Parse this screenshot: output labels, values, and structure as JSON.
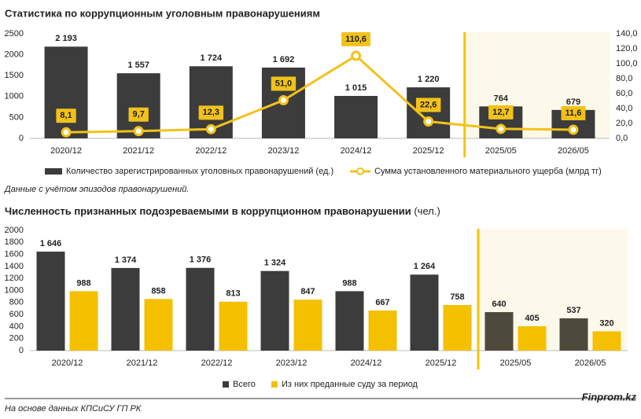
{
  "chart_data": [
    {
      "type": "bar",
      "title": "Статистика по коррупционным уголовным правонарушениям",
      "categories": [
        "2020/12",
        "2021/12",
        "2022/12",
        "2023/12",
        "2024/12",
        "2025/12",
        "2025/05",
        "2026/05"
      ],
      "series": [
        {
          "name": "Количество зарегистрированных уголовных правонарушений (ед.)",
          "type": "bar",
          "color": "#3c3c3c",
          "values": [
            2193,
            1557,
            1724,
            1692,
            1015,
            1220,
            764,
            679
          ],
          "value_labels": [
            "2 193",
            "1 557",
            "1 724",
            "1 692",
            "1 015",
            "1 220",
            "764",
            "679"
          ]
        },
        {
          "name": "Сумма установленного материального ущерба (млрд тг)",
          "type": "line",
          "axis": "y2",
          "color": "#f2c21b",
          "values": [
            8.1,
            9.7,
            12.3,
            51.0,
            110.6,
            22.6,
            12.7,
            11.6
          ],
          "value_labels": [
            "8,1",
            "9,7",
            "12,3",
            "51,0",
            "110,6",
            "22,6",
            "12,7",
            "11,6"
          ]
        }
      ],
      "ylim": [
        0,
        2500
      ],
      "yticks": [
        0,
        500,
        1000,
        1500,
        2000,
        2500
      ],
      "y2lim": [
        0,
        140
      ],
      "y2ticks": [
        {
          "value": 0,
          "label": "0,0"
        },
        {
          "value": 20,
          "label": "20,0"
        },
        {
          "value": 40,
          "label": "40,0"
        },
        {
          "value": 60,
          "label": "60,0"
        },
        {
          "value": 80,
          "label": "80,0"
        },
        {
          "value": 100,
          "label": "100,0"
        },
        {
          "value": 120,
          "label": "120,0"
        },
        {
          "value": 140,
          "label": "140,0"
        }
      ],
      "grid": false,
      "highlight": {
        "from_index": 6,
        "color": "#fdf9ea",
        "line_color": "#f5c400"
      }
    },
    {
      "type": "bar",
      "title": "Численность признанных подозреваемыми в коррупционном правонарушении",
      "subtitle": "(чел.)",
      "categories": [
        "2020/12",
        "2021/12",
        "2022/12",
        "2023/12",
        "2024/12",
        "2025/12",
        "2025/05",
        "2026/05"
      ],
      "series": [
        {
          "name": "Всего",
          "type": "bar",
          "color": "#3c3c3c",
          "values": [
            1646,
            1374,
            1376,
            1324,
            988,
            1264,
            640,
            537
          ],
          "value_labels": [
            "1 646",
            "1 374",
            "1 376",
            "1 324",
            "988",
            "1 264",
            "640",
            "537"
          ]
        },
        {
          "name": "Из них преданные суду за период",
          "type": "bar",
          "color": "#f5c000",
          "values": [
            988,
            858,
            813,
            847,
            667,
            758,
            405,
            320
          ]
        }
      ],
      "ylim": [
        0,
        2000
      ],
      "yticks": [
        0,
        200,
        400,
        600,
        800,
        1000,
        1200,
        1400,
        1600,
        1800,
        2000
      ],
      "grid": false,
      "highlight": {
        "from_index": 6,
        "color": "#fdf9ea",
        "line_color": "#f5c400",
        "series_color": "#4d4a3b"
      }
    }
  ],
  "note": "Данные с учётом эпизодов правонарушений.",
  "source": "На основе данных КПСиСУ ГП РК",
  "brand": "Finprom.kz"
}
